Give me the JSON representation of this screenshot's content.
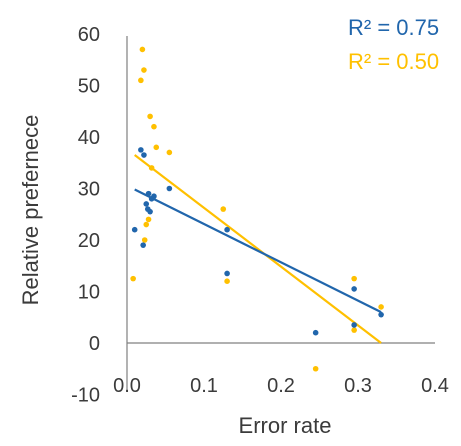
{
  "chart_data": {
    "type": "scatter",
    "xlabel": "Error rate",
    "ylabel": "Relative prefernece",
    "xlim": [
      0.0,
      0.4
    ],
    "ylim": [
      -10,
      60
    ],
    "x_ticks": [
      "0.0",
      "0.1",
      "0.2",
      "0.3",
      "0.4"
    ],
    "y_ticks": [
      "-10",
      "0",
      "10",
      "20",
      "30",
      "40",
      "50",
      "60"
    ],
    "grid": false,
    "legend": "top-right",
    "series": [
      {
        "color": "#2166ac",
        "annotation": "R² = 0.75",
        "points": [
          {
            "x": 0.01,
            "y": 22
          },
          {
            "x": 0.018,
            "y": 37.5
          },
          {
            "x": 0.021,
            "y": 19
          },
          {
            "x": 0.022,
            "y": 36.5
          },
          {
            "x": 0.025,
            "y": 27
          },
          {
            "x": 0.027,
            "y": 26
          },
          {
            "x": 0.028,
            "y": 29
          },
          {
            "x": 0.03,
            "y": 25.5
          },
          {
            "x": 0.032,
            "y": 28
          },
          {
            "x": 0.035,
            "y": 28.5
          },
          {
            "x": 0.055,
            "y": 30
          },
          {
            "x": 0.13,
            "y": 22
          },
          {
            "x": 0.13,
            "y": 13.5
          },
          {
            "x": 0.245,
            "y": 2
          },
          {
            "x": 0.295,
            "y": 10.5
          },
          {
            "x": 0.295,
            "y": 3.5
          },
          {
            "x": 0.33,
            "y": 5.5
          }
        ],
        "trendline": {
          "x": [
            0.01,
            0.33
          ],
          "y": [
            29.8,
            6
          ]
        }
      },
      {
        "color": "#ffc000",
        "annotation": "R² = 0.50",
        "points": [
          {
            "x": 0.008,
            "y": 12.5
          },
          {
            "x": 0.018,
            "y": 51
          },
          {
            "x": 0.02,
            "y": 57
          },
          {
            "x": 0.022,
            "y": 53
          },
          {
            "x": 0.023,
            "y": 20
          },
          {
            "x": 0.025,
            "y": 23
          },
          {
            "x": 0.028,
            "y": 24
          },
          {
            "x": 0.03,
            "y": 44
          },
          {
            "x": 0.032,
            "y": 34
          },
          {
            "x": 0.035,
            "y": 42
          },
          {
            "x": 0.038,
            "y": 38
          },
          {
            "x": 0.055,
            "y": 37
          },
          {
            "x": 0.125,
            "y": 26
          },
          {
            "x": 0.13,
            "y": 12
          },
          {
            "x": 0.245,
            "y": -5
          },
          {
            "x": 0.295,
            "y": 12.5
          },
          {
            "x": 0.295,
            "y": 2.5
          },
          {
            "x": 0.33,
            "y": 7
          }
        ],
        "trendline": {
          "x": [
            0.01,
            0.33
          ],
          "y": [
            36.5,
            0
          ]
        }
      }
    ]
  }
}
